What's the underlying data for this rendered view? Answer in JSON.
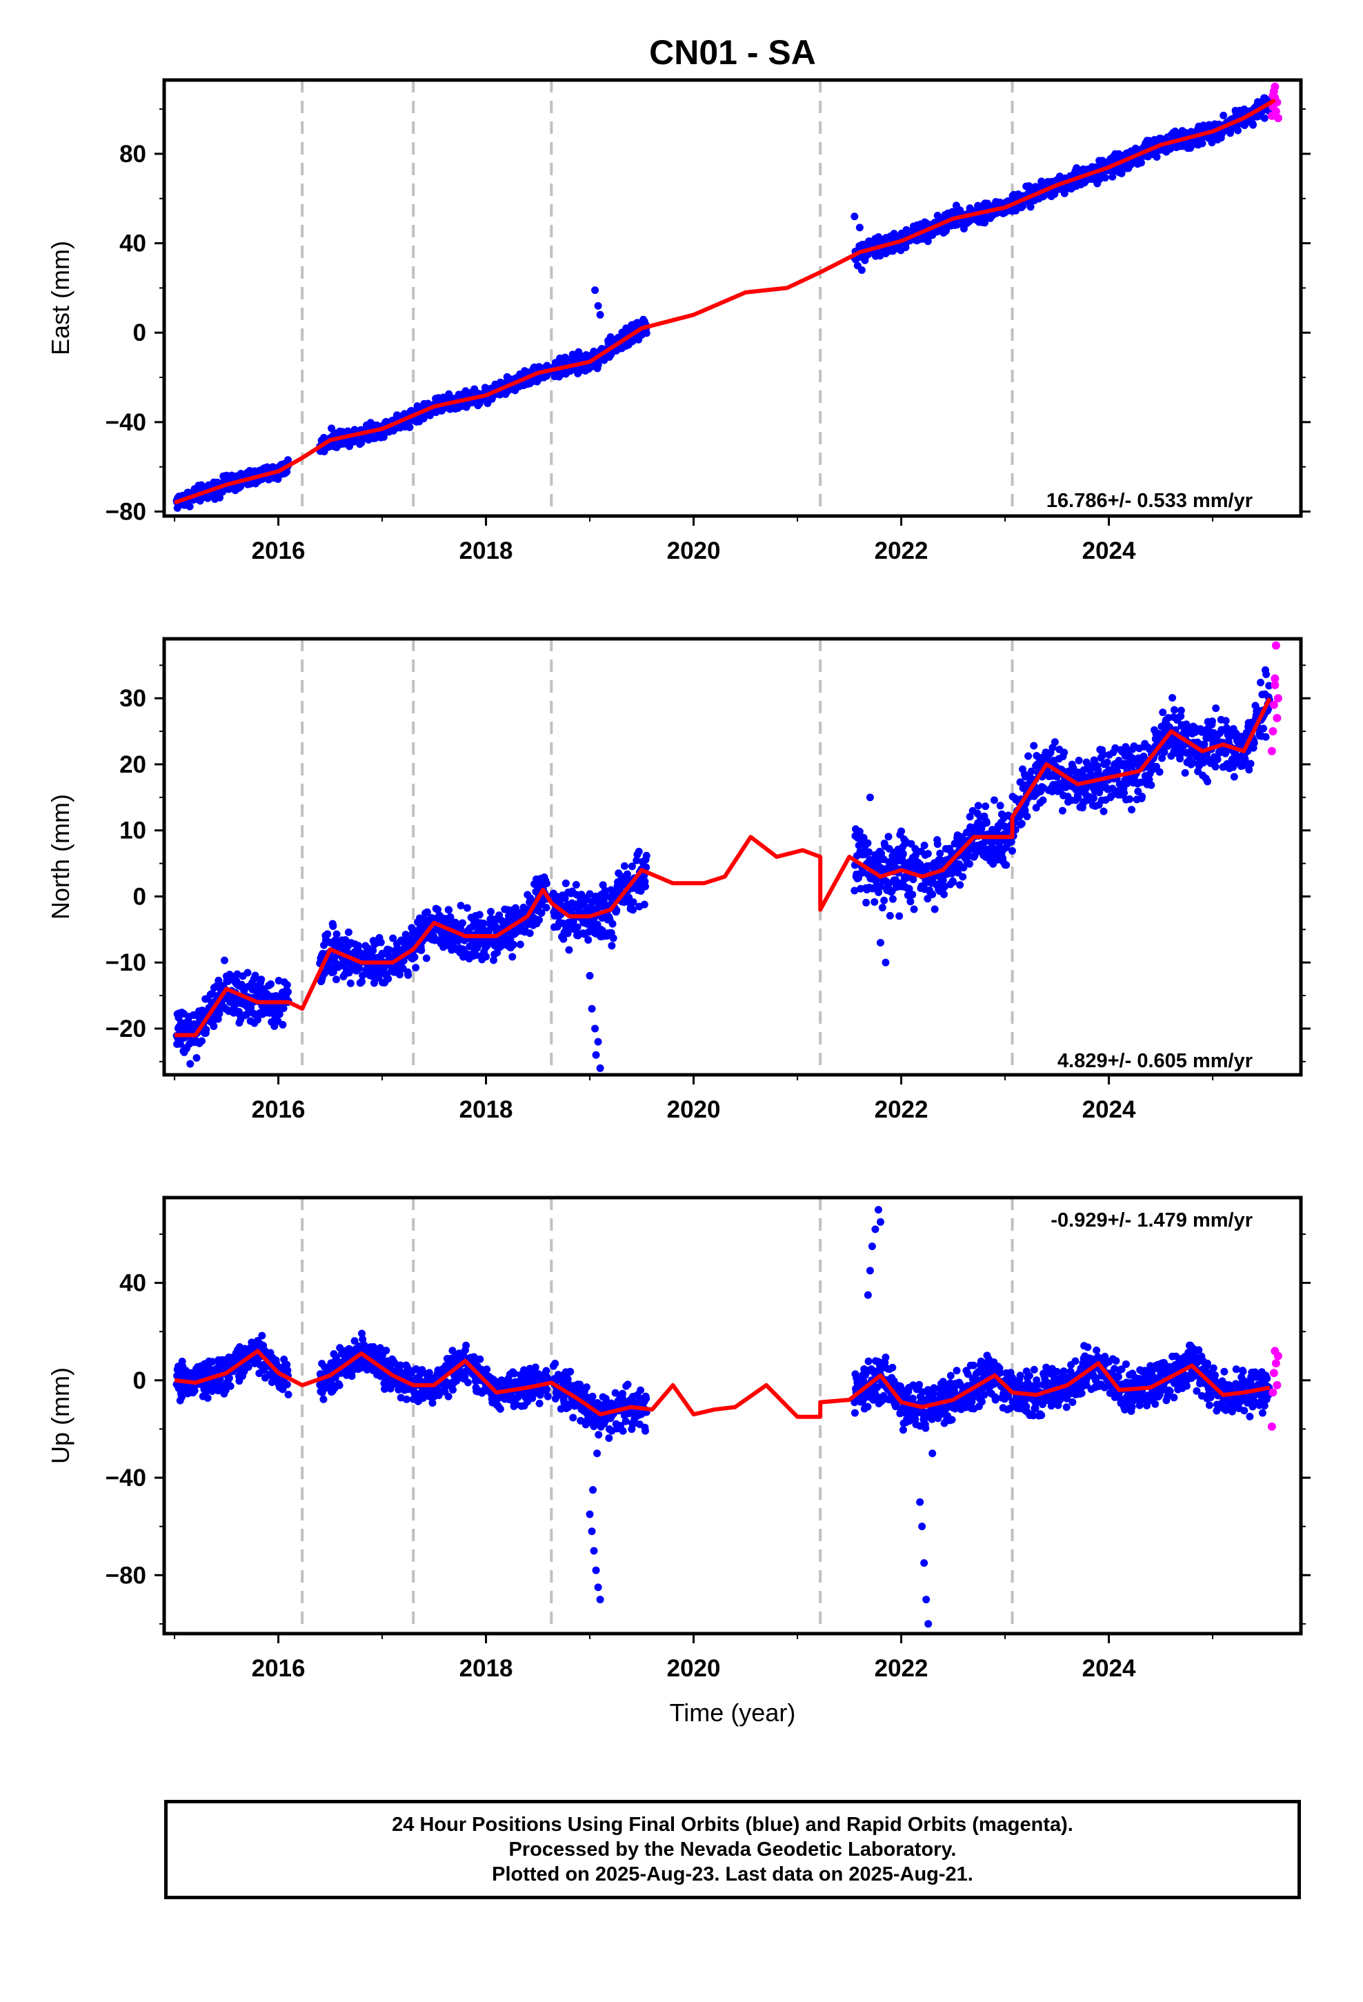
{
  "title": "CN01 - SA",
  "xlabel": "Time (year)",
  "colors": {
    "final": "#0000ff",
    "rapid": "#ff00ff",
    "model": "#ff0000",
    "breaks": "#c0c0c0"
  },
  "footer": {
    "line1": "24 Hour Positions Using Final Orbits (blue) and Rapid Orbits (magenta).",
    "line2": "Processed by the Nevada Geodetic Laboratory.",
    "line3": "Plotted on 2025-Aug-23. Last data on 2025-Aug-21."
  },
  "chart_data": [
    {
      "type": "scatter",
      "ylabel": "East (mm)",
      "rate_text": "16.786+/- 0.533 mm/yr",
      "xlim": [
        2014.9,
        2025.85
      ],
      "ylim": [
        -82,
        113
      ],
      "yticks": [
        -80,
        -40,
        0,
        40,
        80
      ],
      "xticks": [
        2016,
        2018,
        2020,
        2022,
        2024
      ],
      "breaks": [
        2016.23,
        2017.3,
        2018.63,
        2021.22,
        2023.07
      ],
      "model": {
        "x": [
          2015.0,
          2015.5,
          2016.0,
          2016.23,
          2016.5,
          2017.0,
          2017.5,
          2018.0,
          2018.5,
          2019.0,
          2019.5,
          2020.0,
          2020.5,
          2020.9,
          2021.22,
          2021.6,
          2022.0,
          2022.5,
          2023.0,
          2023.5,
          2024.0,
          2024.5,
          2025.0,
          2025.3,
          2025.6
        ],
        "y": [
          -76,
          -68,
          -62,
          -56,
          -48,
          -43,
          -33,
          -28,
          -18,
          -13,
          2,
          8,
          18,
          20,
          27,
          36,
          41,
          51,
          56,
          66,
          74,
          84,
          90,
          96,
          104
        ]
      },
      "final_segments": [
        {
          "start": 2015.02,
          "end": 2016.1,
          "y0": -77,
          "y1": -60,
          "noise": 2.5
        },
        {
          "start": 2016.4,
          "end": 2018.6,
          "y0": -48,
          "y1": -16,
          "noise": 2.5
        },
        {
          "start": 2018.65,
          "end": 2019.55,
          "y0": -16,
          "y1": 3,
          "noise": 3
        },
        {
          "start": 2021.55,
          "end": 2025.55,
          "y0": 35,
          "y1": 98,
          "noise": 3
        }
      ],
      "final_extra": [
        {
          "x": 2019.05,
          "y": 19
        },
        {
          "x": 2019.1,
          "y": 8
        },
        {
          "x": 2019.08,
          "y": 12
        },
        {
          "x": 2021.55,
          "y": 52
        },
        {
          "x": 2021.6,
          "y": 47
        },
        {
          "x": 2021.58,
          "y": 30
        },
        {
          "x": 2021.62,
          "y": 28
        }
      ],
      "rapid_points": {
        "x": [
          2025.57,
          2025.58,
          2025.59,
          2025.6,
          2025.61,
          2025.62,
          2025.63,
          2025.6,
          2025.58
        ],
        "y": [
          97,
          101,
          108,
          105,
          99,
          103,
          96,
          110,
          106
        ]
      }
    },
    {
      "type": "scatter",
      "ylabel": "North (mm)",
      "rate_text": "4.829+/- 0.605 mm/yr",
      "xlim": [
        2014.9,
        2025.85
      ],
      "ylim": [
        -27,
        39
      ],
      "yticks": [
        -20,
        -10,
        0,
        10,
        20,
        30
      ],
      "xticks": [
        2016,
        2018,
        2020,
        2022,
        2024
      ],
      "breaks": [
        2016.23,
        2017.3,
        2018.63,
        2021.22,
        2023.07
      ],
      "model": {
        "x": [
          2015.0,
          2015.2,
          2015.5,
          2015.8,
          2016.1,
          2016.23,
          2016.35,
          2016.5,
          2016.8,
          2017.1,
          2017.3,
          2017.5,
          2017.8,
          2018.1,
          2018.4,
          2018.55,
          2018.63,
          2018.8,
          2019.0,
          2019.2,
          2019.5,
          2019.8,
          2020.1,
          2020.3,
          2020.55,
          2020.8,
          2021.05,
          2021.22,
          2021.22,
          2021.5,
          2021.8,
          2022.0,
          2022.2,
          2022.4,
          2022.7,
          2023.0,
          2023.07,
          2023.07,
          2023.4,
          2023.7,
          2024.0,
          2024.3,
          2024.6,
          2024.9,
          2025.1,
          2025.3,
          2025.55
        ],
        "y": [
          -21,
          -21,
          -14,
          -16,
          -16,
          -17,
          -13,
          -8,
          -10,
          -10,
          -8,
          -4,
          -6,
          -6,
          -3,
          1,
          -1,
          -3,
          -3,
          -2,
          4,
          2,
          2,
          3,
          9,
          6,
          7,
          6,
          -2,
          6,
          3,
          4,
          3,
          4,
          9,
          9,
          9,
          12,
          20,
          17,
          18,
          19,
          25,
          22,
          23,
          22,
          30
        ]
      },
      "final_segments": [
        {
          "start": 2015.02,
          "end": 2016.1,
          "y0": -20,
          "y1": -16,
          "noise": 2.5
        },
        {
          "start": 2016.4,
          "end": 2018.6,
          "y0": -9,
          "y1": -3,
          "noise": 2.5
        },
        {
          "start": 2018.65,
          "end": 2019.55,
          "y0": -3,
          "y1": 3,
          "noise": 3
        },
        {
          "start": 2021.55,
          "end": 2022.1,
          "y0": 4,
          "y1": 2,
          "noise": 4
        },
        {
          "start": 2022.1,
          "end": 2025.55,
          "y0": 4,
          "y1": 25,
          "noise": 3
        }
      ],
      "final_extra": [
        {
          "x": 2019.0,
          "y": -12
        },
        {
          "x": 2019.02,
          "y": -17
        },
        {
          "x": 2019.05,
          "y": -20
        },
        {
          "x": 2019.08,
          "y": -22
        },
        {
          "x": 2019.1,
          "y": -26
        },
        {
          "x": 2019.06,
          "y": -24
        },
        {
          "x": 2021.7,
          "y": 15
        },
        {
          "x": 2021.8,
          "y": -7
        },
        {
          "x": 2021.85,
          "y": -10
        }
      ],
      "rapid_points": {
        "x": [
          2025.57,
          2025.58,
          2025.59,
          2025.6,
          2025.61,
          2025.62,
          2025.63,
          2025.6
        ],
        "y": [
          22,
          25,
          29,
          32,
          38,
          27,
          30,
          33
        ]
      }
    },
    {
      "type": "scatter",
      "ylabel": "Up (mm)",
      "rate_text": "-0.929+/- 1.479 mm/yr",
      "xlim": [
        2014.9,
        2025.85
      ],
      "ylim": [
        -104,
        75
      ],
      "yticks": [
        -80,
        -40,
        0,
        40
      ],
      "xticks": [
        2016,
        2018,
        2020,
        2022,
        2024
      ],
      "breaks": [
        2016.23,
        2017.3,
        2018.63,
        2021.22,
        2023.07
      ],
      "model": {
        "x": [
          2015.0,
          2015.2,
          2015.5,
          2015.8,
          2016.0,
          2016.23,
          2016.5,
          2016.8,
          2017.1,
          2017.3,
          2017.5,
          2017.8,
          2018.1,
          2018.4,
          2018.63,
          2018.9,
          2019.1,
          2019.4,
          2019.6,
          2019.8,
          2020.0,
          2020.2,
          2020.4,
          2020.7,
          2021.0,
          2021.22,
          2021.22,
          2021.5,
          2021.8,
          2022.0,
          2022.2,
          2022.5,
          2022.9,
          2023.07,
          2023.3,
          2023.6,
          2023.9,
          2024.1,
          2024.4,
          2024.8,
          2025.1,
          2025.3,
          2025.55
        ],
        "y": [
          0,
          -1,
          3,
          12,
          3,
          -2,
          2,
          11,
          2,
          -2,
          -2,
          8,
          -5,
          -3,
          -1,
          -8,
          -14,
          -11,
          -12,
          -2,
          -14,
          -12,
          -11,
          -2,
          -15,
          -15,
          -9,
          -8,
          2,
          -9,
          -11,
          -8,
          2,
          -5,
          -6,
          -2,
          7,
          -4,
          -3,
          6,
          -6,
          -5,
          -3
        ]
      },
      "final_segments": [
        {
          "start": 2015.02,
          "end": 2016.1,
          "y0": 2,
          "y1": 8,
          "noise": 5
        },
        {
          "start": 2016.4,
          "end": 2018.6,
          "y0": 3,
          "y1": -2,
          "noise": 5
        },
        {
          "start": 2018.65,
          "end": 2019.55,
          "y0": -3,
          "y1": -8,
          "noise": 6
        },
        {
          "start": 2021.55,
          "end": 2025.55,
          "y0": 0,
          "y1": -2,
          "noise": 6
        }
      ],
      "final_extra": [
        {
          "x": 2019.0,
          "y": -55
        },
        {
          "x": 2019.02,
          "y": -62
        },
        {
          "x": 2019.04,
          "y": -70
        },
        {
          "x": 2019.06,
          "y": -78
        },
        {
          "x": 2019.08,
          "y": -85
        },
        {
          "x": 2019.1,
          "y": -90
        },
        {
          "x": 2019.03,
          "y": -45
        },
        {
          "x": 2019.07,
          "y": -30
        },
        {
          "x": 2021.7,
          "y": 45
        },
        {
          "x": 2021.72,
          "y": 55
        },
        {
          "x": 2021.75,
          "y": 62
        },
        {
          "x": 2021.78,
          "y": 70
        },
        {
          "x": 2021.8,
          "y": 65
        },
        {
          "x": 2021.68,
          "y": 35
        },
        {
          "x": 2022.2,
          "y": -60
        },
        {
          "x": 2022.22,
          "y": -75
        },
        {
          "x": 2022.24,
          "y": -90
        },
        {
          "x": 2022.26,
          "y": -100
        },
        {
          "x": 2022.18,
          "y": -50
        },
        {
          "x": 2022.3,
          "y": -30
        }
      ],
      "rapid_points": {
        "x": [
          2025.57,
          2025.58,
          2025.59,
          2025.6,
          2025.61,
          2025.62,
          2025.63
        ],
        "y": [
          -19,
          -5,
          3,
          12,
          7,
          -2,
          10
        ]
      }
    }
  ]
}
